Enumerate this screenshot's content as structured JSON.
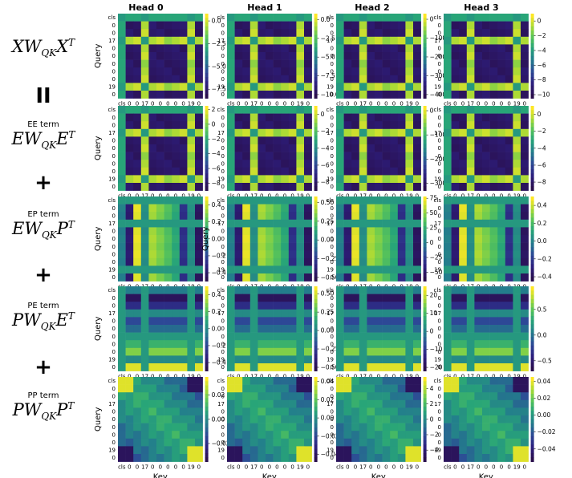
{
  "heads": [
    "Head 0",
    "Head 1",
    "Head 2",
    "Head 3"
  ],
  "rows": [
    {
      "term": "",
      "formula": {
        "a": "XW",
        "sub": "QK",
        "b": "X",
        "sup": "T"
      },
      "operator": "II"
    },
    {
      "term": "EE term",
      "formula": {
        "a": "EW",
        "sub": "QK",
        "b": "E",
        "sup": "T"
      },
      "operator": "+"
    },
    {
      "term": "EP term",
      "formula": {
        "a": "EW",
        "sub": "QK",
        "b": "P",
        "sup": "T"
      },
      "operator": "+"
    },
    {
      "term": "PE term",
      "formula": {
        "a": "PW",
        "sub": "QK",
        "b": "E",
        "sup": "T"
      },
      "operator": "+"
    },
    {
      "term": "PP term",
      "formula": {
        "a": "PW",
        "sub": "QK",
        "b": "P",
        "sup": "T"
      },
      "operator": ""
    }
  ],
  "axes": {
    "x_label": "Key",
    "y_label": "Query"
  },
  "colors": {
    "low": "#2a0f4c",
    "mid": "#21908c",
    "high": "#fde725"
  },
  "chart_data": {
    "type": "heatmap",
    "tick_labels": [
      "cls",
      "0",
      "0",
      "17",
      "0",
      "0",
      "0",
      "0",
      "0",
      "19",
      "0"
    ],
    "x_tick_labels_compact": "cls 0 0170 0 0 0 0 19 0 0",
    "panels": [
      [
        {
          "colorbar_ticks": [
            0.0,
            -2.5,
            -5.0,
            -7.5
          ],
          "colorbar_labels": [
            "0.0",
            "−2.5",
            "−5.0",
            "−7.5"
          ],
          "vmin": -8.5,
          "vmax": 0.8,
          "pattern": "cross"
        },
        {
          "colorbar_ticks": [
            0.0,
            -2.5,
            -5.0,
            -7.5,
            -10.0
          ],
          "colorbar_labels": [
            "0.0",
            "−2.5",
            "−5.0",
            "−7.5",
            "−10.0"
          ],
          "vmin": -10.5,
          "vmax": 0.8,
          "pattern": "cross"
        },
        {
          "colorbar_ticks": [
            0,
            -100,
            -200,
            -300,
            -400
          ],
          "colorbar_labels": [
            "0",
            "−100",
            "−200",
            "−300",
            "−400"
          ],
          "vmin": -420,
          "vmax": 30,
          "pattern": "cross"
        },
        {
          "colorbar_ticks": [
            0,
            -2,
            -4,
            -6,
            -8,
            -10
          ],
          "colorbar_labels": [
            "0",
            "−2",
            "−4",
            "−6",
            "−8",
            "−10"
          ],
          "vmin": -10.5,
          "vmax": 1,
          "pattern": "cross"
        }
      ],
      [
        {
          "colorbar_ticks": [
            2,
            0,
            -2,
            -4,
            -6,
            -8
          ],
          "colorbar_labels": [
            "2",
            "0",
            "−2",
            "−4",
            "−6",
            "−8"
          ],
          "vmin": -9,
          "vmax": 2.5,
          "pattern": "cross"
        },
        {
          "colorbar_ticks": [
            0,
            -2,
            -4,
            -6,
            -8
          ],
          "colorbar_labels": [
            "0",
            "−2",
            "−4",
            "−6",
            "−8"
          ],
          "vmin": -9,
          "vmax": 1,
          "pattern": "cross"
        },
        {
          "colorbar_ticks": [
            0,
            -100,
            -200,
            -300
          ],
          "colorbar_labels": [
            "0",
            "−100",
            "−200",
            "−300"
          ],
          "vmin": -330,
          "vmax": 20,
          "pattern": "cross"
        },
        {
          "colorbar_ticks": [
            0,
            -2,
            -4,
            -6,
            -8
          ],
          "colorbar_labels": [
            "0",
            "−2",
            "−4",
            "−6",
            "−8"
          ],
          "vmin": -9,
          "vmax": 1,
          "pattern": "cross"
        }
      ],
      [
        {
          "colorbar_ticks": [
            0.4,
            0.2,
            0.0,
            -0.2,
            -0.4
          ],
          "colorbar_labels": [
            "0.4",
            "0.2",
            "0.0",
            "−0.2",
            "−0.4"
          ],
          "vmin": -0.5,
          "vmax": 0.5,
          "pattern": "columns"
        },
        {
          "colorbar_ticks": [
            0.5,
            0.25,
            0.0,
            -0.25,
            -0.5
          ],
          "colorbar_labels": [
            "0.50",
            "0.25",
            "0.00",
            "−0.25",
            "−0.50"
          ],
          "vmin": -0.55,
          "vmax": 0.58,
          "pattern": "columns"
        },
        {
          "colorbar_ticks": [
            75,
            50,
            25,
            0,
            -25,
            -50
          ],
          "colorbar_labels": [
            "75",
            "50",
            "25",
            "0",
            "−25",
            "−50"
          ],
          "vmin": -65,
          "vmax": 78,
          "pattern": "columns"
        },
        {
          "colorbar_ticks": [
            0.4,
            0.2,
            0.0,
            -0.2,
            -0.4
          ],
          "colorbar_labels": [
            "0.4",
            "0.2",
            "0.0",
            "−0.2",
            "−0.4"
          ],
          "vmin": -0.45,
          "vmax": 0.5,
          "pattern": "columns"
        }
      ],
      [
        {
          "colorbar_ticks": [
            0.4,
            0.2,
            0.0,
            -0.2,
            -0.4
          ],
          "colorbar_labels": [
            "0.4",
            "0.2",
            "0.0",
            "−0.2",
            "−0.4"
          ],
          "vmin": -0.5,
          "vmax": 0.5,
          "pattern": "rows"
        },
        {
          "colorbar_ticks": [
            0.5,
            0.25,
            0.0,
            -0.25,
            -0.5
          ],
          "colorbar_labels": [
            "0.50",
            "0.25",
            "0.00",
            "−0.25",
            "−0.50"
          ],
          "vmin": -0.55,
          "vmax": 0.6,
          "pattern": "rows"
        },
        {
          "colorbar_ticks": [
            20,
            10,
            0,
            -10,
            -20
          ],
          "colorbar_labels": [
            "20",
            "10",
            "0",
            "−10",
            "−20"
          ],
          "vmin": -22,
          "vmax": 25,
          "pattern": "rows"
        },
        {
          "colorbar_ticks": [
            0.5,
            0.0,
            -0.5
          ],
          "colorbar_labels": [
            "0.5",
            "0.0",
            "−0.5"
          ],
          "vmin": -0.7,
          "vmax": 0.95,
          "pattern": "rows"
        }
      ],
      [
        {
          "colorbar_ticks": [
            0.02,
            0.0,
            -0.02
          ],
          "colorbar_labels": [
            "0.02",
            "0.00",
            "−0.02"
          ],
          "vmin": -0.035,
          "vmax": 0.035,
          "pattern": "diag"
        },
        {
          "colorbar_ticks": [
            0.04,
            0.02,
            0.0,
            -0.02,
            -0.04
          ],
          "colorbar_labels": [
            "0.04",
            "0.02",
            "0.00",
            "−0.02",
            "−0.04"
          ],
          "vmin": -0.048,
          "vmax": 0.045,
          "pattern": "diag"
        },
        {
          "colorbar_ticks": [
            4,
            2,
            0,
            -2,
            -4
          ],
          "colorbar_labels": [
            "4",
            "2",
            "0",
            "−2",
            "−4"
          ],
          "vmin": -5.5,
          "vmax": 5.5,
          "pattern": "diag"
        },
        {
          "colorbar_ticks": [
            0.04,
            0.02,
            0.0,
            -0.02,
            -0.04
          ],
          "colorbar_labels": [
            "0.04",
            "0.02",
            "0.00",
            "−0.02",
            "−0.04"
          ],
          "vmin": -0.055,
          "vmax": 0.045,
          "pattern": "diag"
        }
      ]
    ]
  }
}
